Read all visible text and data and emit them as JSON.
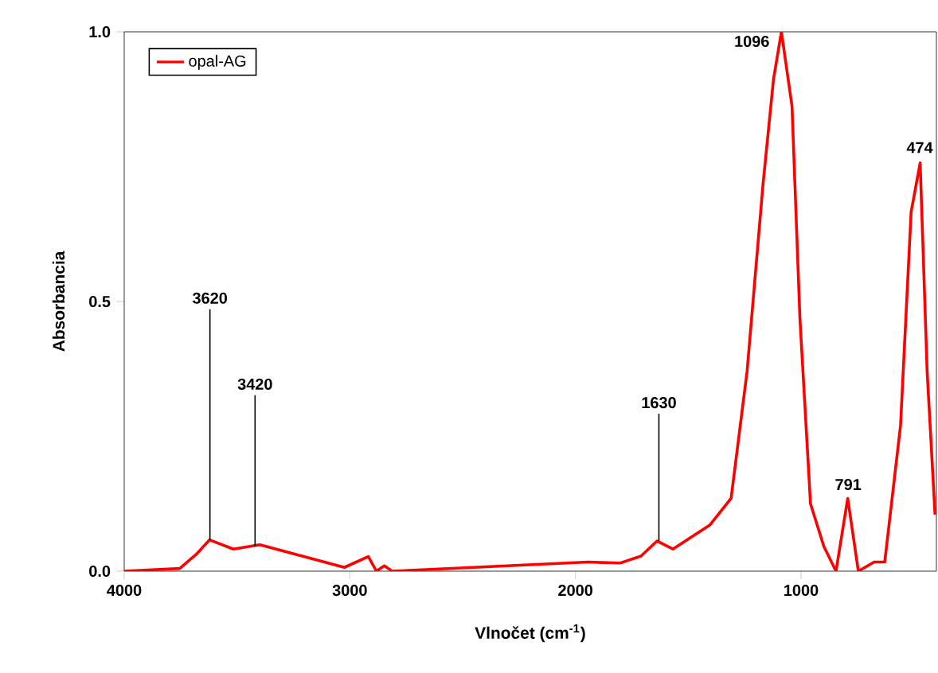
{
  "chart_data": {
    "type": "line",
    "xlabel": "Vlnočet (cm$^{-1}$)",
    "ylabel": "Absorbancia",
    "xlim": [
      4000,
      400
    ],
    "ylim": [
      0,
      1.0
    ],
    "xticks": [
      4000,
      3000,
      2000,
      1000
    ],
    "yticks": [
      {
        "value": 0,
        "label": "0.0"
      },
      {
        "value": 0.5,
        "label": "0.5"
      },
      {
        "value": 1.0,
        "label": "1.0"
      }
    ],
    "grid": false,
    "legend": "top left",
    "line_style": "solid",
    "marker": "none",
    "series": [
      {
        "name": "opal-AG",
        "color": "#ff0000",
        "x": [
          4000,
          3754,
          3681,
          3622,
          3516,
          3399,
          3024,
          2918,
          2882,
          2847,
          2812,
          1944,
          1803,
          1709,
          1638,
          1568,
          1403,
          1310,
          1239,
          1169,
          1122,
          1087,
          1040,
          1005,
          958,
          899,
          845,
          793,
          746,
          676,
          629,
          559,
          512,
          472,
          441,
          406
        ],
        "values": [
          0,
          0.005,
          0.031,
          0.058,
          0.041,
          0.049,
          0.007,
          0.027,
          0,
          0.01,
          0,
          0.017,
          0.015,
          0.028,
          0.056,
          0.041,
          0.086,
          0.135,
          0.371,
          0.715,
          0.912,
          1.0,
          0.862,
          0.469,
          0.125,
          0.046,
          0,
          0.135,
          0,
          0.017,
          0.017,
          0.27,
          0.666,
          0.757,
          0.37,
          0.105
        ]
      }
    ],
    "annotations": [
      {
        "text": "3620",
        "x": 3620,
        "y": 0.058
      },
      {
        "text": "3420",
        "x": 3420,
        "y": 0.046
      },
      {
        "text": "1630",
        "x": 1630,
        "y": 0.056
      },
      {
        "text": "1096",
        "x": 1096,
        "y": 1.0
      },
      {
        "text": "791",
        "x": 791,
        "y": 0.135
      },
      {
        "text": "474",
        "x": 474,
        "y": 0.757
      }
    ]
  }
}
